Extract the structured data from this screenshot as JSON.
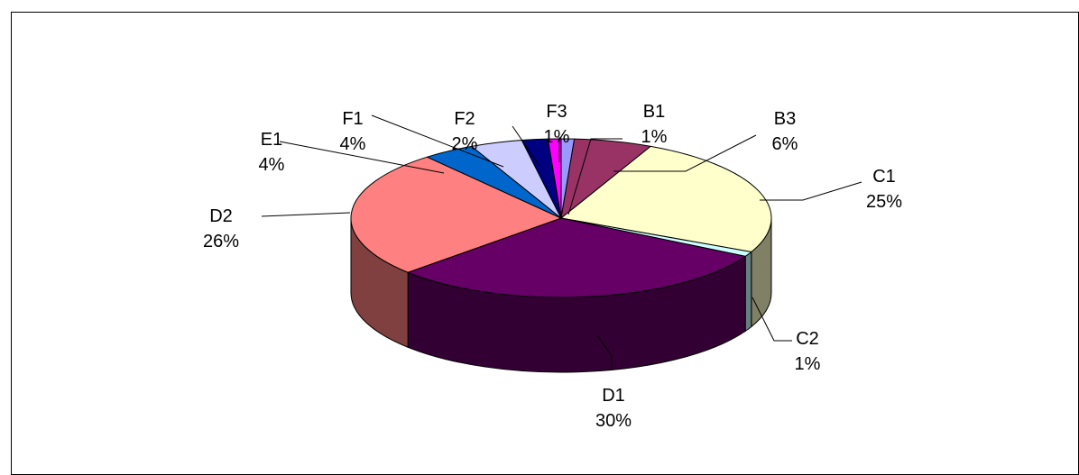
{
  "chart_data": {
    "type": "pie",
    "three_d": true,
    "title": "",
    "legend": "none",
    "slices": [
      {
        "label": "B1",
        "value": 1,
        "pct_label": "1%",
        "color": "#9999FF"
      },
      {
        "label": "B3",
        "value": 6,
        "pct_label": "6%",
        "color": "#993366"
      },
      {
        "label": "C1",
        "value": 25,
        "pct_label": "25%",
        "color": "#FFFFCC"
      },
      {
        "label": "C2",
        "value": 1,
        "pct_label": "1%",
        "color": "#CCFFFF"
      },
      {
        "label": "D1",
        "value": 30,
        "pct_label": "30%",
        "color": "#660066"
      },
      {
        "label": "D2",
        "value": 26,
        "pct_label": "26%",
        "color": "#FF8080"
      },
      {
        "label": "E1",
        "value": 4,
        "pct_label": "4%",
        "color": "#0066CC"
      },
      {
        "label": "F1",
        "value": 4,
        "pct_label": "4%",
        "color": "#CCCCFF"
      },
      {
        "label": "F2",
        "value": 2,
        "pct_label": "2%",
        "color": "#000080"
      },
      {
        "label": "F3",
        "value": 1,
        "pct_label": "1%",
        "color": "#FF00FF"
      }
    ]
  }
}
